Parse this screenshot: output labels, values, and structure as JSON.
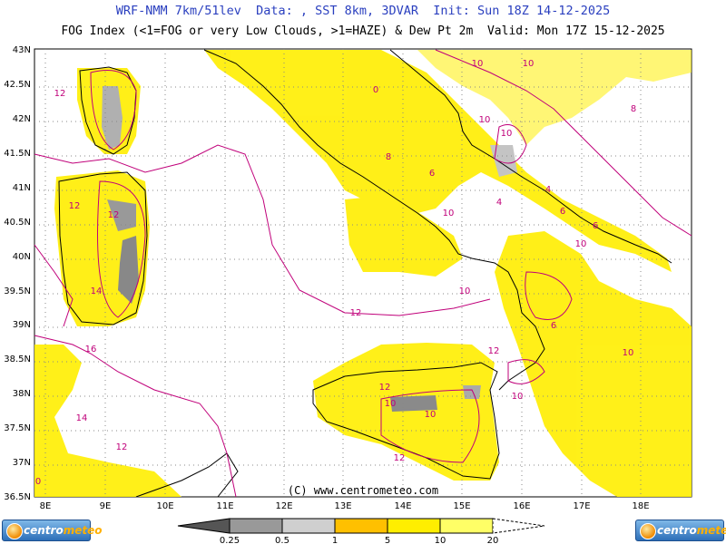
{
  "header": {
    "line1": "WRF-NMM 7km/51lev  Data: , SST 8km, 3DVAR  Init: Sun 18Z 14-12-2025",
    "line2": "FOG Index (<1=FOG or very Low Clouds, >1=HAZE) & Dew Pt 2m  Valid: Mon 17Z 15-12-2025"
  },
  "axes": {
    "lat_labels": [
      "43N",
      "42.5N",
      "42N",
      "41.5N",
      "41N",
      "40.5N",
      "40N",
      "39.5N",
      "39N",
      "38.5N",
      "38N",
      "37.5N",
      "37N",
      "36.5N"
    ],
    "lon_labels": [
      "8E",
      "9E",
      "10E",
      "11E",
      "12E",
      "13E",
      "14E",
      "15E",
      "16E",
      "17E",
      "18E"
    ]
  },
  "contour_labels": [
    "12",
    "12",
    "12",
    "14",
    "16",
    "14",
    "12",
    "10",
    "10",
    "10",
    "8",
    "4",
    "6",
    "6",
    "4",
    "6",
    "10",
    "10",
    "10",
    "10",
    "6",
    "12",
    "10",
    "12",
    "12",
    "10",
    "10",
    "12",
    "10",
    "8",
    "0",
    "0"
  ],
  "copyright": "(C) www.centrometeo.com",
  "legend": {
    "colors": [
      "#555555",
      "#999999",
      "#cfcfcf",
      "#ffc000",
      "#ffee00",
      "#ffff66",
      "#ffffff"
    ],
    "labels": [
      "0.25",
      "0.5",
      "1",
      "5",
      "10",
      "20"
    ]
  },
  "logo": {
    "word_a": "centro",
    "word_b": "meteo"
  }
}
